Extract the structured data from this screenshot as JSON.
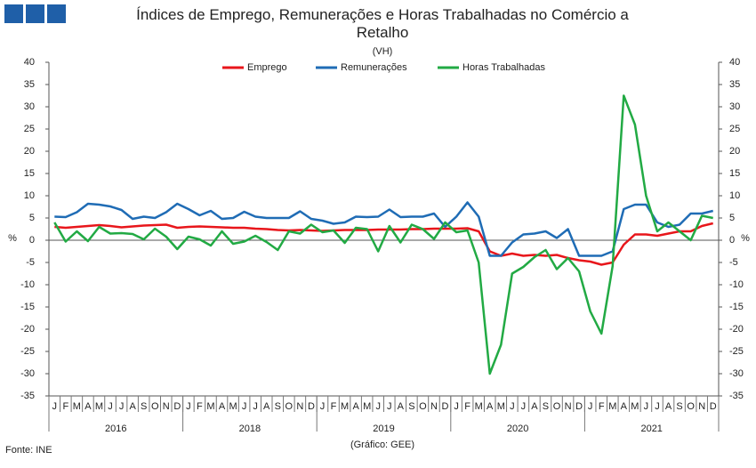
{
  "chart_data": {
    "type": "line",
    "title": "Índices de Emprego, Remunerações e Horas Trabalhadas no Comércio a Retalho",
    "subtitle": "(VH)",
    "y_label": "%",
    "source": "Fonte: INE",
    "credit": "(Gráfico: GEE)",
    "categories": [
      "J",
      "F",
      "M",
      "A",
      "M",
      "J",
      "J",
      "A",
      "S",
      "O",
      "N",
      "D",
      "J",
      "F",
      "M",
      "A",
      "M",
      "J",
      "J",
      "A",
      "S",
      "O",
      "N",
      "D",
      "J",
      "F",
      "M",
      "A",
      "M",
      "J",
      "J",
      "A",
      "S",
      "O",
      "N",
      "D",
      "J",
      "F",
      "M",
      "A",
      "M",
      "J",
      "J",
      "A",
      "S",
      "O",
      "N",
      "D",
      "J",
      "F",
      "M",
      "A",
      "M",
      "J",
      "J",
      "A",
      "S",
      "O",
      "N",
      "D"
    ],
    "years": [
      "2016",
      "2018",
      "2019",
      "2020",
      "2021"
    ],
    "ylim": [
      -35,
      40
    ],
    "yticks": [
      -35,
      -30,
      -25,
      -20,
      -15,
      -10,
      -5,
      0,
      5,
      10,
      15,
      20,
      25,
      30,
      35,
      40
    ],
    "y2lim": [
      -35,
      40
    ],
    "y2ticks": [
      -35,
      -30,
      -25,
      -20,
      -15,
      -10,
      -5,
      0,
      5,
      10,
      15,
      20,
      25,
      30,
      35,
      40
    ],
    "legend": "top",
    "series": [
      {
        "name": "Emprego",
        "color": "#e8161b",
        "values": [
          3,
          2.8,
          3,
          3.2,
          3.4,
          3.2,
          2.9,
          3.1,
          3.3,
          3.4,
          3.5,
          2.8,
          3,
          3.1,
          3,
          2.9,
          2.8,
          2.8,
          2.6,
          2.5,
          2.3,
          2.2,
          2.3,
          2.2,
          2.1,
          2.2,
          2.3,
          2.3,
          2.3,
          2.4,
          2.4,
          2.4,
          2.5,
          2.5,
          2.6,
          2.6,
          2.6,
          2.7,
          2,
          -2.5,
          -3.5,
          -3,
          -3.5,
          -3.3,
          -3.5,
          -3.3,
          -4,
          -4.5,
          -4.8,
          -5.5,
          -5,
          -1,
          1.3,
          1.3,
          1,
          1.5,
          2,
          2,
          3.2,
          3.8
        ]
      },
      {
        "name": "Remunerações",
        "color": "#1f6cb5",
        "values": [
          5.3,
          5.2,
          6.3,
          8.2,
          8,
          7.6,
          6.8,
          4.8,
          5.3,
          5,
          6.3,
          8.2,
          7,
          5.6,
          6.6,
          4.8,
          5,
          6.4,
          5.3,
          5,
          5,
          5,
          6.5,
          4.8,
          4.4,
          3.7,
          4,
          5.3,
          5.2,
          5.3,
          6.9,
          5.2,
          5.3,
          5.3,
          6,
          3,
          5.3,
          8.5,
          5.3,
          -3.5,
          -3.5,
          -0.5,
          1.3,
          1.5,
          2,
          0.5,
          2.5,
          -3.5,
          -3.5,
          -3.5,
          -2.5,
          7,
          8,
          8,
          4,
          3,
          3.5,
          6,
          6,
          6.6
        ]
      },
      {
        "name": "Horas Trabalhadas",
        "color": "#22aa44",
        "values": [
          4,
          -0.3,
          2,
          -0.2,
          3,
          1.5,
          1.6,
          1.4,
          0.2,
          2.6,
          0.8,
          -2,
          0.8,
          0.2,
          -1.2,
          2,
          -0.8,
          -0.3,
          1,
          -0.4,
          -2.2,
          2,
          1.5,
          3.5,
          1.8,
          2.2,
          -0.6,
          2.8,
          2.5,
          -2.5,
          3.2,
          -0.5,
          3.5,
          2.5,
          0.3,
          4,
          1.8,
          2.2,
          -5,
          -30,
          -23.5,
          -7.5,
          -6,
          -3.8,
          -2.2,
          -6.5,
          -4,
          -7,
          -16,
          -21,
          -5.8,
          32.5,
          26,
          10,
          2,
          4,
          2,
          0,
          5.5,
          5
        ]
      }
    ]
  }
}
